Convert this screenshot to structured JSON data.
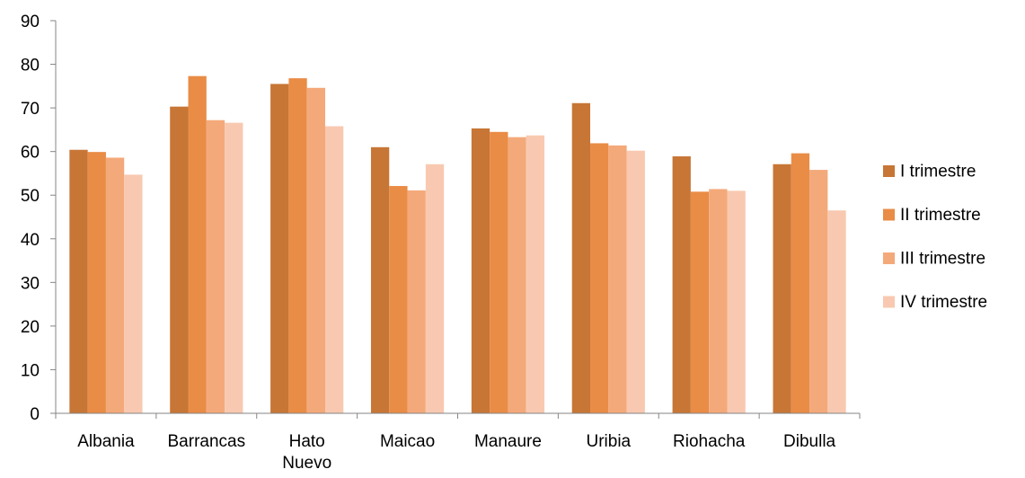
{
  "chart_data": {
    "type": "bar",
    "title": "",
    "xlabel": "",
    "ylabel": "",
    "ylim": [
      0,
      90
    ],
    "yticks": [
      0,
      10,
      20,
      30,
      40,
      50,
      60,
      70,
      80,
      90
    ],
    "grid": false,
    "legend_position": "right",
    "categories": [
      [
        "Albania"
      ],
      [
        "Barrancas"
      ],
      [
        "Hato",
        "Nuevo"
      ],
      [
        "Maicao"
      ],
      [
        "Manaure"
      ],
      [
        "Uribia"
      ],
      [
        "Riohacha"
      ],
      [
        "Dibulla"
      ]
    ],
    "series": [
      {
        "name": "I trimestre",
        "color": "#C77636",
        "values": [
          60.4,
          70.3,
          75.5,
          61.0,
          65.3,
          71.1,
          58.9,
          57.1
        ]
      },
      {
        "name": "II trimestre",
        "color": "#E98C46",
        "values": [
          59.9,
          77.3,
          76.8,
          52.1,
          64.5,
          61.9,
          50.8,
          59.6
        ]
      },
      {
        "name": "III trimestre",
        "color": "#F4A97A",
        "values": [
          58.6,
          67.2,
          74.6,
          51.1,
          63.3,
          61.4,
          51.4,
          55.8
        ]
      },
      {
        "name": "IV trimestre",
        "color": "#F8C9B0",
        "values": [
          54.7,
          66.6,
          65.8,
          57.1,
          63.7,
          60.2,
          51.0,
          46.5
        ]
      }
    ]
  }
}
